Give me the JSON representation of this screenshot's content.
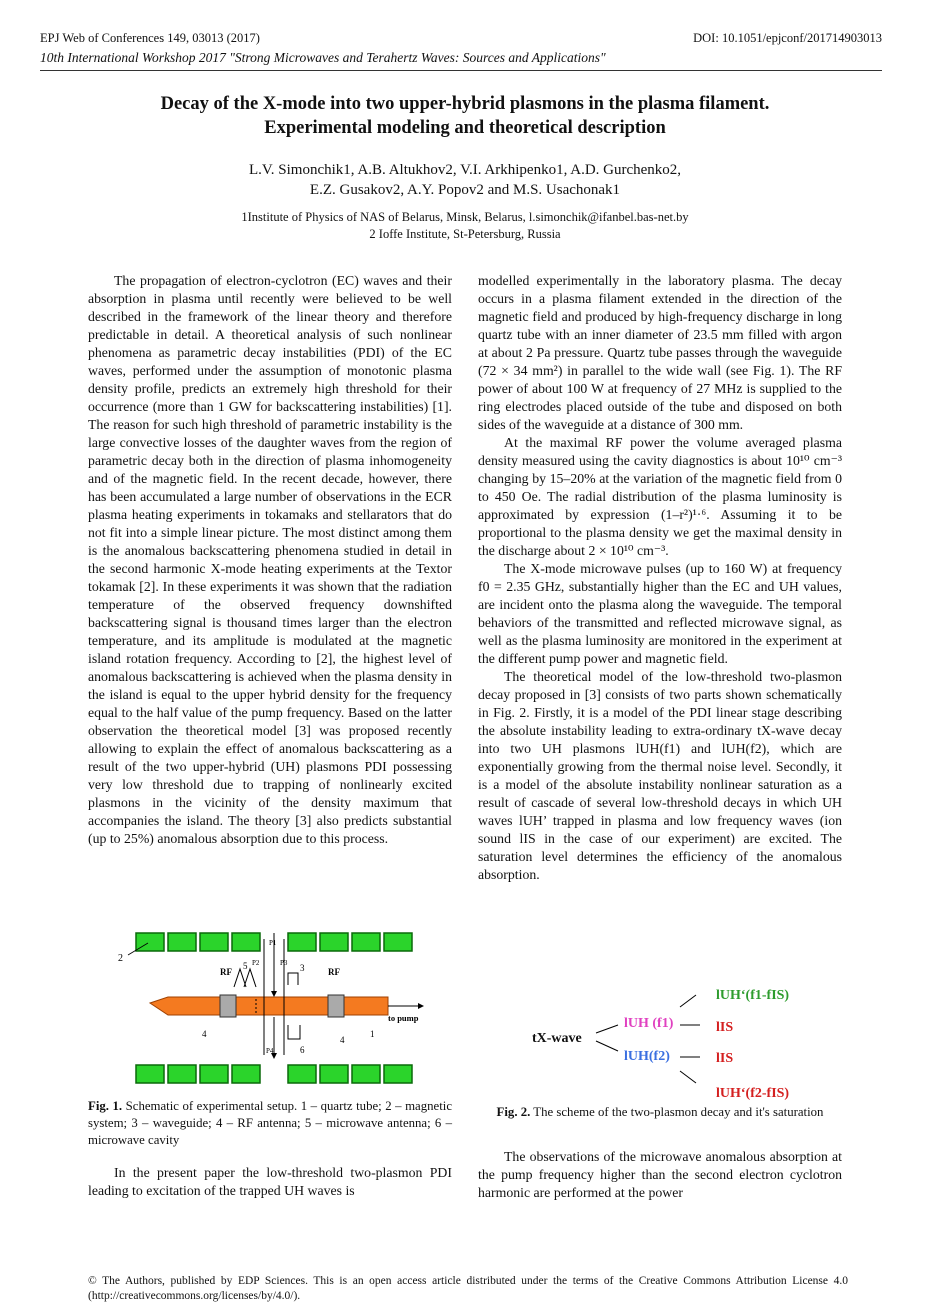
{
  "header": {
    "journal": "EPJ Web of Conferences 149, 03013 (2017)",
    "doi": "DOI: 10.1051/epjconf/201714903013",
    "workshop": "10th International Workshop 2017 \"Strong Microwaves and Terahertz Waves: Sources and Applications\""
  },
  "title": {
    "line1": "Decay of the X-mode into two upper-hybrid plasmons in the plasma filament.",
    "line2": "Experimental modeling and theoretical description"
  },
  "authors": {
    "line1": "L.V. Simonchik1, A.B. Altukhov2, V.I. Arkhipenko1, A.D. Gurchenko2,",
    "line2": "E.Z. Gusakov2, A.Y. Popov2 and M.S. Usachonak1"
  },
  "affiliations": {
    "a1": "1Institute of Physics of NAS of Belarus, Minsk, Belarus, l.simonchik@ifanbel.bas-net.by",
    "a2": "2 Ioffe Institute, St-Petersburg, Russia"
  },
  "left_column": {
    "p1": "The propagation of electron-cyclotron (EC) waves and their absorption in plasma until recently were believed to be well described in the framework of the linear theory and therefore predictable in detail. A theoretical analysis of such nonlinear phenomena as parametric decay instabilities (PDI) of the EC waves, performed under the assumption of monotonic plasma density profile, predicts an extremely high threshold for their occurrence (more than 1 GW for backscattering instabilities) [1]. The reason for such high threshold of parametric instability is the large convective losses of the daughter waves from the region of parametric decay both in the direction of plasma inhomogeneity and of the magnetic field. In the recent decade, however, there has been accumulated a large number of observations in the ECR plasma heating experiments in tokamaks and stellarators that do not fit into a simple linear picture. The most distinct among them is the anomalous backscattering phenomena studied in detail in the second harmonic X-mode heating experiments at the Textor tokamak [2]. In these experiments it was shown that the radiation temperature of the observed frequency downshifted backscattering signal is thousand times larger than the electron temperature, and its amplitude is modulated at the magnetic island rotation frequency. According to [2], the highest level of anomalous backscattering is achieved when the plasma density in the island is equal to the upper hybrid density for the frequency equal to the half value of the pump frequency. Based on the latter observation the theoretical model [3] was proposed recently allowing to explain the effect of anomalous backscattering as a result of the two upper-hybrid (UH) plasmons PDI possessing very low threshold due to trapping of nonlinearly excited plasmons in the vicinity of the density maximum that accompanies the island. The theory [3] also predicts substantial (up to 25%) anomalous absorption due to this process.",
    "p2": "In the present paper the low-threshold two-plasmon PDI leading to excitation of the trapped UH waves is"
  },
  "figure1": {
    "labels": {
      "n1": "1",
      "n2": "2",
      "n3": "3",
      "n4a": "4",
      "n4b": "4",
      "n5": "5",
      "n6": "6",
      "rf_left": "RF",
      "rf_right": "RF",
      "to_pump": "to pump",
      "p1": "P1",
      "p2": "P2",
      "p3": "P3",
      "p4": "P4"
    },
    "caption_label": "Fig. 1.",
    "caption": "Schematic of experimental setup. 1 – quartz tube; 2 – magnetic system; 3 – waveguide; 4 – RF antenna; 5 – microwave antenna; 6 – microwave cavity"
  },
  "right_column": {
    "p1": "modelled experimentally in the laboratory plasma. The decay occurs in a plasma filament extended in the direction of the magnetic field and produced by high-frequency discharge in long quartz tube with an inner diameter of 23.5 mm filled with argon at about 2 Pa pressure. Quartz tube passes through the waveguide (72 × 34 mm²) in parallel to the wide wall (see Fig. 1). The RF power of about 100 W at frequency of 27 MHz is supplied to the ring electrodes placed outside of the tube and disposed on both sides of the waveguide at a distance of 300 mm.",
    "p2": "At the maximal RF power the volume averaged plasma density measured using the cavity diagnostics is about 10¹⁰ cm⁻³ changing by 15–20% at the variation of the magnetic field from 0 to 450 Oe. The radial distribution of the plasma luminosity is approximated by expression (1–r²)¹·⁶. Assuming it to be proportional to the plasma density we get the maximal density in the discharge about 2 × 10¹⁰ cm⁻³.",
    "p3": "The X-mode microwave pulses (up to 160 W) at frequency f0 = 2.35 GHz, substantially higher than the EC and UH values, are incident onto the plasma along the waveguide. The temporal behaviors of the transmitted and reflected microwave signal, as well as the plasma luminosity are monitored in the experiment at the different pump power and magnetic field.",
    "p4": "The theoretical model of the low-threshold two-plasmon decay proposed in [3] consists of two parts shown schematically in Fig. 2. Firstly, it is a model of the PDI linear stage describing the absolute instability leading to extra-ordinary tX-wave decay into two UH plasmons lUH(f1) and lUH(f2), which are exponentially growing from the thermal noise level. Secondly, it is a model of the absolute instability nonlinear saturation as a result of cascade of several low-threshold decays in which UH waves lUH’ trapped in plasma and low frequency waves (ion sound lIS in the case of our experiment) are excited. The saturation level determines the efficiency of the anomalous absorption.",
    "p5": "The observations of the microwave anomalous absorption at the pump frequency higher than the second electron cyclotron harmonic are performed at the power"
  },
  "figure2": {
    "t_xwave": "tX-wave",
    "l_uh_f1": "lUH (f1)",
    "l_uh_f2": "lUH(f2)",
    "l_uh_prime_top": "lUH‘(f1-fIS)",
    "l_is_1": "lIS",
    "l_is_2": "lIS",
    "l_uh_prime_bottom": "lUH‘(f2-fIS)",
    "caption_label": "Fig. 2.",
    "caption": "The scheme of the two-plasmon decay and it's saturation",
    "colors": {
      "green": "#2e9c2e",
      "magenta": "#e040c0",
      "blue": "#3a6fe0",
      "red": "#d42020",
      "orange": "#f47a20"
    }
  },
  "footer": "© The Authors, published by EDP Sciences. This is an open access article distributed under the terms of the Creative Commons Attribution License 4.0 (http://creativecommons.org/licenses/by/4.0/)."
}
